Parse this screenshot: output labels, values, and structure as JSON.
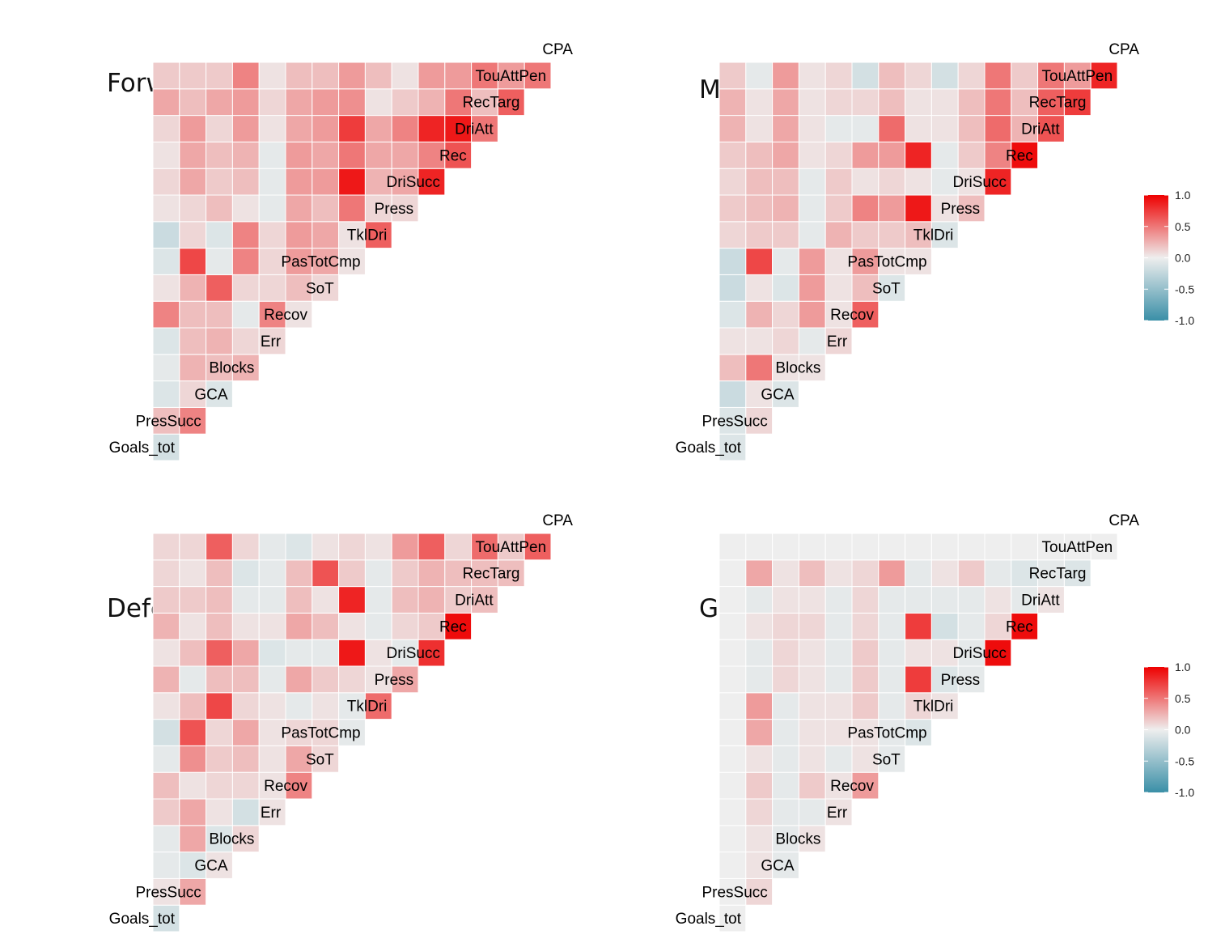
{
  "chart_data": [
    {
      "type": "heatmap",
      "title": "Forwards",
      "variables": [
        "Goals_tot",
        "PresSucc",
        "GCA",
        "Blocks",
        "Err",
        "Recov",
        "SoT",
        "PasTotCmp",
        "TklDri",
        "Press",
        "DriSucc",
        "Rec",
        "DriAtt",
        "RecTarg",
        "TouAttPen",
        "CPA"
      ],
      "correlations": [
        [
          -0.15
        ],
        [
          0.2,
          0.45
        ],
        [
          -0.1,
          0.1,
          -0.1
        ],
        [
          -0.05,
          0.25,
          0.2,
          0.25
        ],
        [
          -0.1,
          0.2,
          0.25,
          0.1,
          0.1
        ],
        [
          0.45,
          0.2,
          0.2,
          -0.05,
          0.45,
          0.05
        ],
        [
          0.05,
          0.25,
          0.6,
          0.1,
          0.1,
          0.2,
          0.1
        ],
        [
          -0.1,
          0.7,
          -0.05,
          0.45,
          0.1,
          0.35,
          0.3,
          0.05
        ],
        [
          -0.2,
          0.1,
          -0.1,
          0.45,
          0.1,
          0.35,
          0.3,
          0.05,
          0.6
        ],
        [
          0.05,
          0.1,
          0.2,
          0.05,
          -0.05,
          0.3,
          0.2,
          0.5,
          0.1,
          0.1
        ],
        [
          0.1,
          0.3,
          0.15,
          0.2,
          -0.05,
          0.35,
          0.35,
          0.9,
          0.25,
          0.3,
          0.85
        ],
        [
          0.05,
          0.3,
          0.2,
          0.25,
          -0.05,
          0.35,
          0.3,
          0.5,
          0.3,
          0.3,
          0.45,
          0.65
        ],
        [
          0.1,
          0.35,
          0.1,
          0.35,
          0.05,
          0.3,
          0.35,
          0.75,
          0.3,
          0.45,
          0.85,
          0.9,
          0.5
        ],
        [
          0.3,
          0.2,
          0.3,
          0.35,
          0.1,
          0.3,
          0.35,
          0.4,
          0.05,
          0.15,
          0.25,
          0.5,
          0.2,
          0.6
        ],
        [
          0.15,
          0.15,
          0.15,
          0.45,
          0.05,
          0.2,
          0.2,
          0.35,
          0.2,
          0.05,
          0.35,
          0.35,
          0.5,
          0.35,
          0.5
        ]
      ]
    },
    {
      "type": "heatmap",
      "title": "Midfielder",
      "variables": [
        "Goals_tot",
        "PresSucc",
        "GCA",
        "Blocks",
        "Err",
        "Recov",
        "SoT",
        "PasTotCmp",
        "TklDri",
        "Press",
        "DriSucc",
        "Rec",
        "DriAtt",
        "RecTarg",
        "TouAttPen",
        "CPA"
      ],
      "correlations": [
        [
          -0.1
        ],
        [
          -0.1,
          0.1
        ],
        [
          -0.2,
          0.05,
          -0.1
        ],
        [
          0.2,
          0.5,
          0.05,
          0.05
        ],
        [
          0.05,
          0.05,
          0.1,
          -0.05,
          0.1
        ],
        [
          -0.1,
          0.25,
          0.1,
          0.35,
          0.05,
          0.6
        ],
        [
          -0.2,
          0.05,
          -0.1,
          0.35,
          0.05,
          0.2,
          -0.1
        ],
        [
          -0.2,
          0.7,
          -0.05,
          0.35,
          0.05,
          0.35,
          0.05,
          0.05
        ],
        [
          0.1,
          0.15,
          0.15,
          -0.05,
          0.25,
          0.15,
          0.15,
          0.2,
          -0.1
        ],
        [
          0.15,
          0.2,
          0.25,
          -0.05,
          0.15,
          0.45,
          0.35,
          0.9,
          0.05,
          0.2
        ],
        [
          0.1,
          0.2,
          0.2,
          -0.05,
          0.15,
          0.05,
          0.1,
          0.05,
          -0.05,
          0.05,
          0.85
        ],
        [
          0.15,
          0.2,
          0.3,
          0.05,
          0.1,
          0.35,
          0.35,
          0.85,
          -0.05,
          0.15,
          0.45,
          0.95
        ],
        [
          0.25,
          0.05,
          0.3,
          0.05,
          -0.05,
          -0.05,
          0.55,
          0.05,
          0.05,
          0.2,
          0.55,
          0.25,
          0.65
        ],
        [
          0.25,
          0.05,
          0.3,
          0.05,
          0.1,
          0.1,
          0.2,
          0.05,
          0.05,
          0.2,
          0.5,
          0.2,
          0.6,
          0.75
        ],
        [
          0.15,
          -0.05,
          0.35,
          0.05,
          0.1,
          -0.15,
          0.2,
          0.1,
          -0.15,
          0.1,
          0.5,
          0.15,
          0.5,
          0.35,
          0.85
        ]
      ]
    },
    {
      "type": "heatmap",
      "title": "Defender",
      "variables": [
        "Goals_tot",
        "PresSucc",
        "GCA",
        "Blocks",
        "Err",
        "Recov",
        "SoT",
        "PasTotCmp",
        "TklDri",
        "Press",
        "DriSucc",
        "Rec",
        "DriAtt",
        "RecTarg",
        "TouAttPen",
        "CPA"
      ],
      "correlations": [
        [
          -0.15
        ],
        [
          0.05,
          0.3
        ],
        [
          -0.05,
          -0.1,
          0.05
        ],
        [
          -0.05,
          0.3,
          -0.1,
          0.1
        ],
        [
          0.15,
          0.3,
          0.05,
          -0.15,
          0.05
        ],
        [
          0.2,
          0.05,
          0.1,
          0.1,
          0.05,
          0.45
        ],
        [
          -0.05,
          0.4,
          0.15,
          0.2,
          0.05,
          0.3,
          0.1
        ],
        [
          -0.15,
          0.65,
          0.1,
          0.3,
          0.05,
          0.1,
          0.1,
          -0.05
        ],
        [
          0.05,
          0.2,
          0.7,
          0.1,
          0.05,
          -0.05,
          0.05,
          -0.05,
          0.55
        ],
        [
          0.25,
          -0.05,
          0.2,
          0.2,
          -0.05,
          0.3,
          0.15,
          0.1,
          0.05,
          0.3
        ],
        [
          0.05,
          0.2,
          0.6,
          0.3,
          -0.1,
          -0.05,
          -0.05,
          0.9,
          0.05,
          -0.05,
          0.8
        ],
        [
          0.25,
          0.05,
          0.2,
          0.05,
          0.05,
          0.3,
          0.2,
          0.05,
          -0.05,
          0.1,
          0.15,
          0.95
        ],
        [
          0.15,
          0.15,
          0.2,
          -0.05,
          -0.05,
          0.2,
          0.05,
          0.85,
          -0.05,
          0.2,
          0.25,
          0.15,
          0.2
        ],
        [
          0.1,
          0.05,
          0.2,
          -0.1,
          -0.05,
          0.2,
          0.65,
          0.15,
          -0.05,
          0.15,
          0.25,
          0.2,
          0.2,
          0.2
        ],
        [
          0.1,
          0.1,
          0.6,
          0.1,
          -0.05,
          -0.1,
          0.05,
          0.1,
          0.05,
          0.35,
          0.6,
          0.1,
          0.55,
          0.15,
          0.6
        ]
      ]
    },
    {
      "type": "heatmap",
      "title": "Goalkeeper",
      "variables": [
        "Goals_tot",
        "PresSucc",
        "GCA",
        "Blocks",
        "Err",
        "Recov",
        "SoT",
        "PasTotCmp",
        "TklDri",
        "Press",
        "DriSucc",
        "Rec",
        "DriAtt",
        "RecTarg",
        "TouAttPen",
        "CPA"
      ],
      "correlations": [
        [
          0.0
        ],
        [
          0.0,
          0.1
        ],
        [
          0.0,
          0.05,
          -0.05
        ],
        [
          0.0,
          0.05,
          -0.05,
          0.05
        ],
        [
          0.0,
          0.1,
          -0.05,
          -0.05,
          0.05
        ],
        [
          0.0,
          0.15,
          -0.05,
          0.15,
          0.05,
          0.35
        ],
        [
          0.0,
          0.05,
          -0.05,
          0.05,
          -0.05,
          0.05,
          -0.05
        ],
        [
          0.0,
          0.3,
          -0.05,
          0.05,
          0.05,
          0.05,
          -0.05,
          -0.1
        ],
        [
          0.0,
          0.35,
          -0.05,
          0.05,
          0.05,
          0.15,
          -0.05,
          0.1,
          0.05
        ],
        [
          0.0,
          -0.05,
          0.1,
          0.05,
          -0.05,
          0.15,
          -0.05,
          0.75,
          -0.1,
          -0.05
        ],
        [
          0.0,
          -0.05,
          0.1,
          0.05,
          -0.05,
          0.15,
          -0.05,
          0.05,
          0.05,
          -0.05,
          0.95
        ],
        [
          0.0,
          0.05,
          0.1,
          0.1,
          -0.05,
          0.1,
          -0.05,
          0.75,
          -0.15,
          -0.05,
          0.1,
          0.95
        ],
        [
          0.0,
          -0.05,
          0.05,
          0.05,
          -0.05,
          0.1,
          -0.05,
          -0.05,
          -0.05,
          -0.05,
          0.05,
          -0.05,
          0.05
        ],
        [
          0.0,
          0.3,
          0.05,
          0.2,
          0.05,
          0.1,
          0.35,
          -0.05,
          0.05,
          0.15,
          -0.05,
          -0.1,
          -0.05,
          -0.1
        ],
        [
          0.0,
          0.0,
          0.0,
          0.0,
          0.0,
          0.0,
          0.0,
          0.0,
          0.0,
          0.0,
          0.0,
          0.0,
          0.0,
          0.0,
          0.0
        ]
      ]
    }
  ],
  "legend": {
    "ticks": [
      "1.0",
      "0.5",
      "0.0",
      "-0.5",
      "-1.0"
    ],
    "colors": {
      "high": "#EE0000",
      "mid": "#EEEEEE",
      "low": "#3A8FA7"
    }
  }
}
